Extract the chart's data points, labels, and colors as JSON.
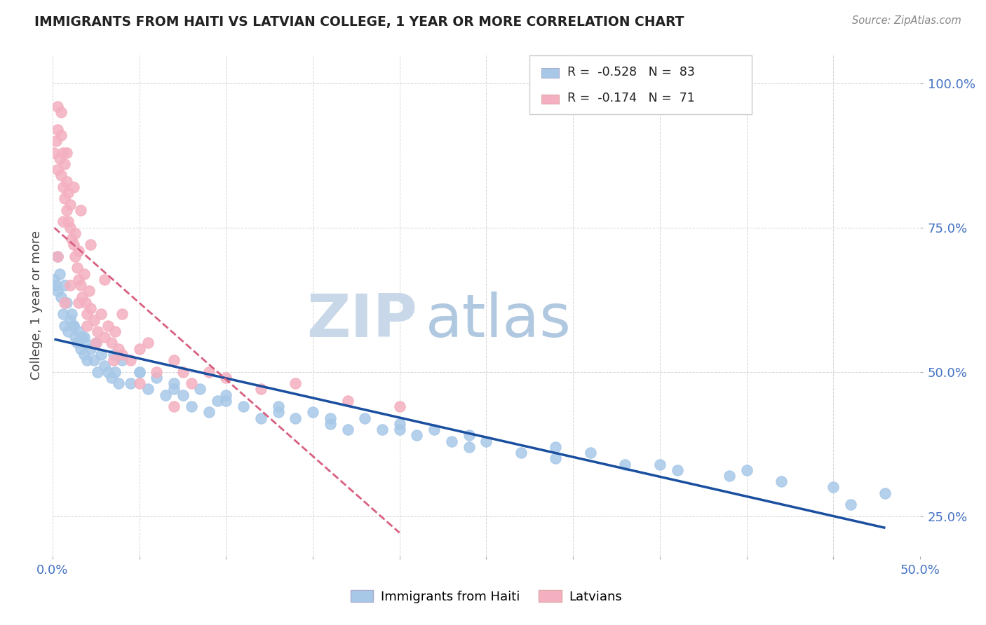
{
  "title": "IMMIGRANTS FROM HAITI VS LATVIAN COLLEGE, 1 YEAR OR MORE CORRELATION CHART",
  "source_text": "Source: ZipAtlas.com",
  "ylabel": "College, 1 year or more",
  "xlim": [
    0.0,
    0.5
  ],
  "ylim": [
    0.18,
    1.05
  ],
  "yticks": [
    0.25,
    0.5,
    0.75,
    1.0
  ],
  "ytick_labels": [
    "25.0%",
    "50.0%",
    "75.0%",
    "100.0%"
  ],
  "xticks": [
    0.0,
    0.05,
    0.1,
    0.15,
    0.2,
    0.25,
    0.3,
    0.35,
    0.4,
    0.45,
    0.5
  ],
  "legend_r1": "-0.528",
  "legend_n1": "83",
  "legend_r2": "-0.174",
  "legend_n2": "71",
  "legend_label1": "Immigrants from Haiti",
  "legend_label2": "Latvians",
  "dot_color_haiti": "#a8c8e8",
  "dot_color_latvian": "#f4b0c0",
  "line_color_haiti": "#1a4fa0",
  "line_color_latvian": "#d86080",
  "watermark": "ZIPatlas",
  "watermark_color": "#ccd8e8",
  "background_color": "#ffffff",
  "title_color": "#222222",
  "axis_color": "#4472c4",
  "haiti_x": [
    0.001,
    0.002,
    0.003,
    0.004,
    0.005,
    0.006,
    0.007,
    0.008,
    0.009,
    0.01,
    0.011,
    0.012,
    0.013,
    0.014,
    0.015,
    0.016,
    0.017,
    0.018,
    0.019,
    0.02,
    0.022,
    0.024,
    0.026,
    0.028,
    0.03,
    0.032,
    0.034,
    0.036,
    0.038,
    0.04,
    0.045,
    0.05,
    0.055,
    0.06,
    0.065,
    0.07,
    0.075,
    0.08,
    0.085,
    0.09,
    0.095,
    0.1,
    0.11,
    0.12,
    0.13,
    0.14,
    0.15,
    0.16,
    0.17,
    0.18,
    0.19,
    0.2,
    0.21,
    0.22,
    0.23,
    0.24,
    0.25,
    0.27,
    0.29,
    0.31,
    0.33,
    0.36,
    0.39,
    0.42,
    0.45,
    0.48,
    0.003,
    0.007,
    0.012,
    0.018,
    0.025,
    0.035,
    0.05,
    0.07,
    0.1,
    0.13,
    0.16,
    0.2,
    0.24,
    0.29,
    0.35,
    0.4,
    0.46
  ],
  "haiti_y": [
    0.66,
    0.65,
    0.64,
    0.67,
    0.63,
    0.6,
    0.58,
    0.62,
    0.57,
    0.59,
    0.6,
    0.58,
    0.56,
    0.55,
    0.57,
    0.54,
    0.56,
    0.53,
    0.55,
    0.52,
    0.54,
    0.52,
    0.5,
    0.53,
    0.51,
    0.5,
    0.49,
    0.5,
    0.48,
    0.52,
    0.48,
    0.5,
    0.47,
    0.49,
    0.46,
    0.48,
    0.46,
    0.44,
    0.47,
    0.43,
    0.45,
    0.46,
    0.44,
    0.42,
    0.44,
    0.42,
    0.43,
    0.41,
    0.4,
    0.42,
    0.4,
    0.41,
    0.39,
    0.4,
    0.38,
    0.37,
    0.38,
    0.36,
    0.35,
    0.36,
    0.34,
    0.33,
    0.32,
    0.31,
    0.3,
    0.29,
    0.7,
    0.65,
    0.58,
    0.56,
    0.55,
    0.53,
    0.5,
    0.47,
    0.45,
    0.43,
    0.42,
    0.4,
    0.39,
    0.37,
    0.34,
    0.33,
    0.27
  ],
  "latvian_x": [
    0.001,
    0.002,
    0.003,
    0.003,
    0.004,
    0.005,
    0.005,
    0.006,
    0.006,
    0.007,
    0.007,
    0.008,
    0.008,
    0.009,
    0.009,
    0.01,
    0.01,
    0.011,
    0.012,
    0.013,
    0.013,
    0.014,
    0.015,
    0.015,
    0.016,
    0.017,
    0.018,
    0.019,
    0.02,
    0.021,
    0.022,
    0.024,
    0.026,
    0.028,
    0.03,
    0.032,
    0.034,
    0.036,
    0.038,
    0.04,
    0.045,
    0.05,
    0.06,
    0.07,
    0.08,
    0.09,
    0.1,
    0.12,
    0.14,
    0.17,
    0.2,
    0.005,
    0.008,
    0.012,
    0.016,
    0.022,
    0.03,
    0.04,
    0.055,
    0.075,
    0.003,
    0.006,
    0.01,
    0.015,
    0.02,
    0.025,
    0.035,
    0.05,
    0.07,
    0.003,
    0.007
  ],
  "latvian_y": [
    0.88,
    0.9,
    0.85,
    0.92,
    0.87,
    0.84,
    0.91,
    0.82,
    0.88,
    0.8,
    0.86,
    0.78,
    0.83,
    0.76,
    0.81,
    0.75,
    0.79,
    0.73,
    0.72,
    0.7,
    0.74,
    0.68,
    0.66,
    0.71,
    0.65,
    0.63,
    0.67,
    0.62,
    0.6,
    0.64,
    0.61,
    0.59,
    0.57,
    0.6,
    0.56,
    0.58,
    0.55,
    0.57,
    0.54,
    0.53,
    0.52,
    0.54,
    0.5,
    0.52,
    0.48,
    0.5,
    0.49,
    0.47,
    0.48,
    0.45,
    0.44,
    0.95,
    0.88,
    0.82,
    0.78,
    0.72,
    0.66,
    0.6,
    0.55,
    0.5,
    0.7,
    0.76,
    0.65,
    0.62,
    0.58,
    0.55,
    0.52,
    0.48,
    0.44,
    0.96,
    0.62
  ]
}
